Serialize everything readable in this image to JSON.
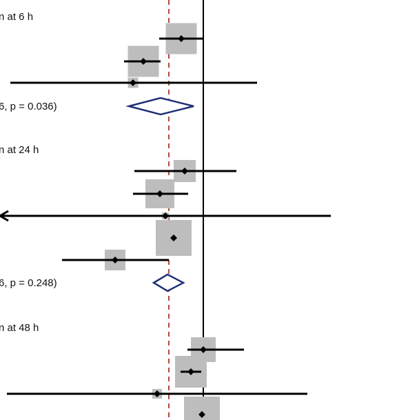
{
  "chart_data": {
    "type": "forest",
    "null_line": 0,
    "pooled_reference": -0.5,
    "x_range_visible": [
      -2.95,
      2.0
    ],
    "subgroups": [
      {
        "heading": "n at 6 h",
        "studies": [
          {
            "estimate": -0.32,
            "lower": -0.64,
            "upper": 0.0,
            "weight": 45,
            "arrow_left": false
          },
          {
            "estimate": -0.87,
            "lower": -1.15,
            "upper": -0.62,
            "weight": 45,
            "arrow_left": false
          },
          {
            "estimate": -1.02,
            "lower": -2.8,
            "upper": 0.78,
            "weight": 15,
            "arrow_left": false
          }
        ],
        "summary": {
          "label": "6, p = 0.036)",
          "estimate": -0.62,
          "lower": -1.08,
          "upper": -0.14
        }
      },
      {
        "heading": "n at 24 h",
        "studies": [
          {
            "estimate": -0.27,
            "lower": -1.0,
            "upper": 0.48,
            "weight": 32,
            "arrow_left": false
          },
          {
            "estimate": -0.63,
            "lower": -1.02,
            "upper": -0.22,
            "weight": 42,
            "arrow_left": false
          },
          {
            "estimate": -0.55,
            "lower": -2.95,
            "upper": 1.85,
            "weight": 10,
            "arrow_left": true
          },
          {
            "estimate": -0.43,
            "lower": -0.43,
            "upper": -0.43,
            "weight": 52,
            "arrow_left": false
          },
          {
            "estimate": -1.28,
            "lower": -2.05,
            "upper": -0.5,
            "weight": 30,
            "arrow_left": false
          }
        ],
        "summary": {
          "label": "6, p = 0.248)",
          "estimate": -0.52,
          "lower": -0.72,
          "upper": -0.29
        }
      },
      {
        "heading": "n at 48 h",
        "studies": [
          {
            "estimate": 0.0,
            "lower": -0.23,
            "upper": 0.59,
            "weight": 36,
            "arrow_left": false
          },
          {
            "estimate": -0.18,
            "lower": -0.33,
            "upper": -0.03,
            "weight": 46,
            "arrow_left": false
          },
          {
            "estimate": -0.67,
            "lower": -2.85,
            "upper": 1.51,
            "weight": 14,
            "arrow_left": false
          },
          {
            "estimate": -0.02,
            "lower": -0.02,
            "upper": -0.02,
            "weight": 52,
            "arrow_left": false
          }
        ],
        "summary": null
      }
    ]
  }
}
